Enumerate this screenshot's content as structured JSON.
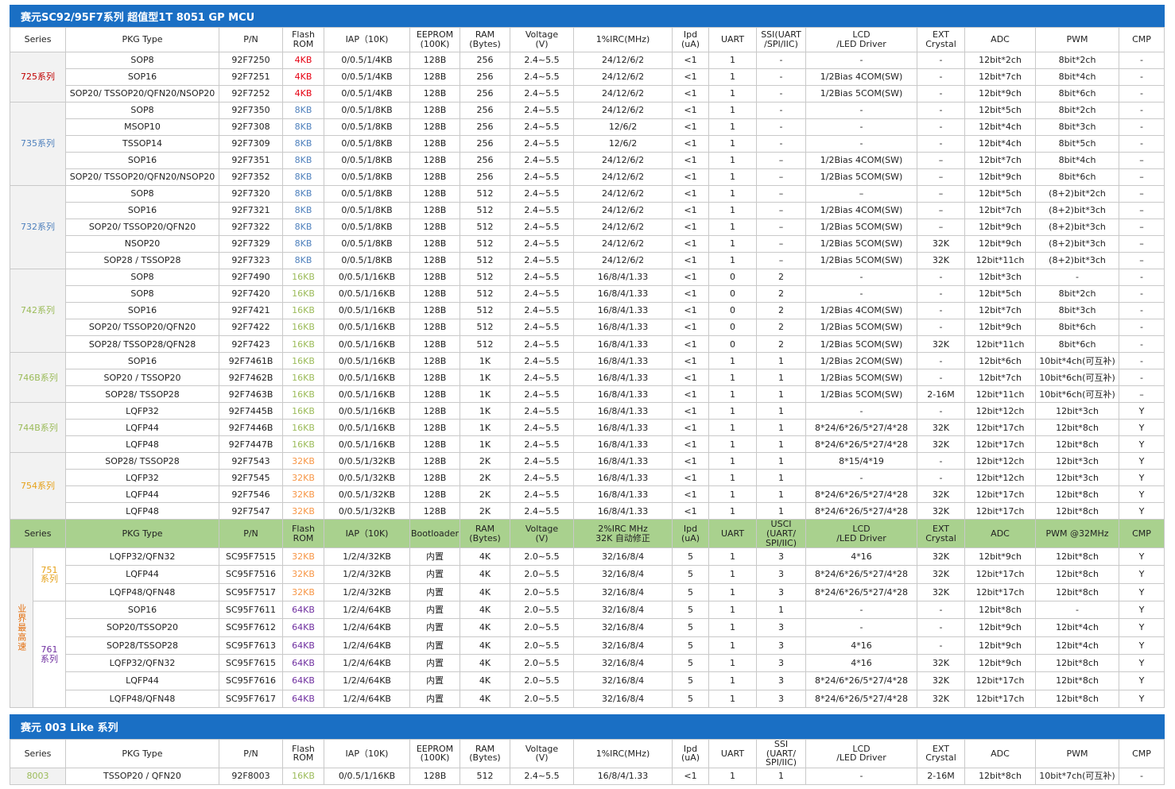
{
  "banner1": "赛元SC92/95F7系列 超值型1T 8051 GP MCU",
  "banner2": "赛元 003 Like 系列",
  "h1": [
    "Series",
    "PKG Type",
    "P/N",
    "Flash\nROM",
    "IAP（10K)",
    "EEPROM\n(100K)",
    "RAM\n(Bytes)",
    "Voltage\n(V)",
    "1%IRC(MHz)",
    "Ipd\n(uA)",
    "UART",
    "SSI(UART\n/SPI/IIC)",
    "LCD\n/LED Driver",
    "EXT\nCrystal",
    "ADC",
    "PWM",
    "CMP"
  ],
  "h2": [
    "Series",
    "PKG Type",
    "P/N",
    "Flash\nROM",
    "IAP（10K)",
    "Bootloader",
    "RAM\n(Bytes)",
    "Voltage\n(V)",
    "2%IRC MHz\n32K 自动修正",
    "Ipd\n(uA)",
    "UART",
    "USCI\n(UART/\nSPI/IIC)",
    "LCD\n/LED Driver",
    "EXT\nCrystal",
    "ADC",
    "PWM @32MHz",
    "CMP"
  ],
  "h3": [
    "Series",
    "PKG Type",
    "P/N",
    "Flash\nROM",
    "IAP（10K)",
    "EEPROM\n(100K)",
    "RAM\n(Bytes)",
    "Voltage\n(V)",
    "1%IRC(MHz)",
    "Ipd\n(uA)",
    "UART",
    "SSI\n(UART/\nSPI/IIC)",
    "LCD\n/LED Driver",
    "EXT\nCrystal",
    "ADC",
    "PWM",
    "CMP"
  ],
  "colors": {
    "banner": "#1a6fc4",
    "green_header": "#a9d18e",
    "red": "#e60012",
    "blue": "#4f81bd",
    "green": "#9bbb59",
    "orange": "#f79646",
    "purple": "#7030a0"
  },
  "groups1": [
    {
      "series": "725系列",
      "color": "sred",
      "rows": [
        [
          "SOP8",
          "92F7250",
          "4KB",
          "0/0.5/1/4KB",
          "128B",
          "256",
          "2.4~5.5",
          "24/12/6/2",
          "<1",
          "1",
          "-",
          "-",
          "-",
          "12bit*2ch",
          "8bit*2ch",
          "-"
        ],
        [
          "SOP16",
          "92F7251",
          "4KB",
          "0/0.5/1/4KB",
          "128B",
          "256",
          "2.4~5.5",
          "24/12/6/2",
          "<1",
          "1",
          "-",
          "1/2Bias 4COM(SW)",
          "-",
          "12bit*7ch",
          "8bit*4ch",
          "-"
        ],
        [
          "SOP20/ TSSOP20/QFN20/NSOP20",
          "92F7252",
          "4KB",
          "0/0.5/1/4KB",
          "128B",
          "256",
          "2.4~5.5",
          "24/12/6/2",
          "<1",
          "1",
          "-",
          "1/2Bias 5COM(SW)",
          "-",
          "12bit*9ch",
          "8bit*6ch",
          "-"
        ]
      ]
    },
    {
      "series": "735系列",
      "color": "sblue",
      "rows": [
        [
          "SOP8",
          "92F7350",
          "8KB",
          "0/0.5/1/8KB",
          "128B",
          "256",
          "2.4~5.5",
          "24/12/6/2",
          "<1",
          "1",
          "-",
          "-",
          "-",
          "12bit*5ch",
          "8bit*2ch",
          "-"
        ],
        [
          "MSOP10",
          "92F7308",
          "8KB",
          "0/0.5/1/8KB",
          "128B",
          "256",
          "2.4~5.5",
          "12/6/2",
          "<1",
          "1",
          "-",
          "-",
          "-",
          "12bit*4ch",
          "8bit*3ch",
          "-"
        ],
        [
          "TSSOP14",
          "92F7309",
          "8KB",
          "0/0.5/1/8KB",
          "128B",
          "256",
          "2.4~5.5",
          "12/6/2",
          "<1",
          "1",
          "-",
          "-",
          "-",
          "12bit*4ch",
          "8bit*5ch",
          "-"
        ],
        [
          "SOP16",
          "92F7351",
          "8KB",
          "0/0.5/1/8KB",
          "128B",
          "256",
          "2.4~5.5",
          "24/12/6/2",
          "<1",
          "1",
          "–",
          "1/2Bias 4COM(SW)",
          "–",
          "12bit*7ch",
          "8bit*4ch",
          "–"
        ],
        [
          "SOP20/ TSSOP20/QFN20/NSOP20",
          "92F7352",
          "8KB",
          "0/0.5/1/8KB",
          "128B",
          "256",
          "2.4~5.5",
          "24/12/6/2",
          "<1",
          "1",
          "–",
          "1/2Bias 5COM(SW)",
          "–",
          "12bit*9ch",
          "8bit*6ch",
          "–"
        ]
      ]
    },
    {
      "series": "732系列",
      "color": "sblue",
      "rows": [
        [
          "SOP8",
          "92F7320",
          "8KB",
          "0/0.5/1/8KB",
          "128B",
          "512",
          "2.4~5.5",
          "24/12/6/2",
          "<1",
          "1",
          "–",
          "–",
          "–",
          "12bit*5ch",
          "(8+2)bit*2ch",
          "–"
        ],
        [
          "SOP16",
          "92F7321",
          "8KB",
          "0/0.5/1/8KB",
          "128B",
          "512",
          "2.4~5.5",
          "24/12/6/2",
          "<1",
          "1",
          "–",
          "1/2Bias 4COM(SW)",
          "–",
          "12bit*7ch",
          "(8+2)bit*3ch",
          "–"
        ],
        [
          "SOP20/ TSSOP20/QFN20",
          "92F7322",
          "8KB",
          "0/0.5/1/8KB",
          "128B",
          "512",
          "2.4~5.5",
          "24/12/6/2",
          "<1",
          "1",
          "–",
          "1/2Bias 5COM(SW)",
          "–",
          "12bit*9ch",
          "(8+2)bit*3ch",
          "–"
        ],
        [
          "NSOP20",
          "92F7329",
          "8KB",
          "0/0.5/1/8KB",
          "128B",
          "512",
          "2.4~5.5",
          "24/12/6/2",
          "<1",
          "1",
          "–",
          "1/2Bias 5COM(SW)",
          "32K",
          "12bit*9ch",
          "(8+2)bit*3ch",
          "–"
        ],
        [
          "SOP28 / TSSOP28",
          "92F7323",
          "8KB",
          "0/0.5/1/8KB",
          "128B",
          "512",
          "2.4~5.5",
          "24/12/6/2",
          "<1",
          "1",
          "–",
          "1/2Bias 5COM(SW)",
          "32K",
          "12bit*11ch",
          "(8+2)bit*3ch",
          "–"
        ]
      ]
    },
    {
      "series": "742系列",
      "color": "solive",
      "rows": [
        [
          "SOP8",
          "92F7490",
          "16KB",
          "0/0.5/1/16KB",
          "128B",
          "512",
          "2.4~5.5",
          "16/8/4/1.33",
          "<1",
          "0",
          "2",
          "-",
          "-",
          "12bit*3ch",
          "-",
          "-"
        ],
        [
          "SOP8",
          "92F7420",
          "16KB",
          "0/0.5/1/16KB",
          "128B",
          "512",
          "2.4~5.5",
          "16/8/4/1.33",
          "<1",
          "0",
          "2",
          "-",
          "-",
          "12bit*5ch",
          "8bit*2ch",
          "-"
        ],
        [
          "SOP16",
          "92F7421",
          "16KB",
          "0/0.5/1/16KB",
          "128B",
          "512",
          "2.4~5.5",
          "16/8/4/1.33",
          "<1",
          "0",
          "2",
          "1/2Bias 4COM(SW)",
          "-",
          "12bit*7ch",
          "8bit*3ch",
          "-"
        ],
        [
          "SOP20/ TSSOP20/QFN20",
          "92F7422",
          "16KB",
          "0/0.5/1/16KB",
          "128B",
          "512",
          "2.4~5.5",
          "16/8/4/1.33",
          "<1",
          "0",
          "2",
          "1/2Bias 5COM(SW)",
          "-",
          "12bit*9ch",
          "8bit*6ch",
          "-"
        ],
        [
          "SOP28/ TSSOP28/QFN28",
          "92F7423",
          "16KB",
          "0/0.5/1/16KB",
          "128B",
          "512",
          "2.4~5.5",
          "16/8/4/1.33",
          "<1",
          "0",
          "2",
          "1/2Bias 5COM(SW)",
          "32K",
          "12bit*11ch",
          "8bit*6ch",
          "-"
        ]
      ]
    },
    {
      "series": "746B系列",
      "color": "solive",
      "rows": [
        [
          "SOP16",
          "92F7461B",
          "16KB",
          "0/0.5/1/16KB",
          "128B",
          "1K",
          "2.4~5.5",
          "16/8/4/1.33",
          "<1",
          "1",
          "1",
          "1/2Bias 2COM(SW)",
          "-",
          "12bit*6ch",
          "10bit*4ch(可互补)",
          "-"
        ],
        [
          "SOP20 / TSSOP20",
          "92F7462B",
          "16KB",
          "0/0.5/1/16KB",
          "128B",
          "1K",
          "2.4~5.5",
          "16/8/4/1.33",
          "<1",
          "1",
          "1",
          "1/2Bias 5COM(SW)",
          "-",
          "12bit*7ch",
          "10bit*6ch(可互补)",
          "-"
        ],
        [
          "SOP28/ TSSOP28",
          "92F7463B",
          "16KB",
          "0/0.5/1/16KB",
          "128B",
          "1K",
          "2.4~5.5",
          "16/8/4/1.33",
          "<1",
          "1",
          "1",
          "1/2Bias 5COM(SW)",
          "2-16M",
          "12bit*11ch",
          "10bit*6ch(可互补)",
          "–"
        ]
      ]
    },
    {
      "series": "744B系列",
      "color": "solive",
      "rows": [
        [
          "LQFP32",
          "92F7445B",
          "16KB",
          "0/0.5/1/16KB",
          "128B",
          "1K",
          "2.4~5.5",
          "16/8/4/1.33",
          "<1",
          "1",
          "1",
          "-",
          "-",
          "12bit*12ch",
          "12bit*3ch",
          "Y"
        ],
        [
          "LQFP44",
          "92F7446B",
          "16KB",
          "0/0.5/1/16KB",
          "128B",
          "1K",
          "2.4~5.5",
          "16/8/4/1.33",
          "<1",
          "1",
          "1",
          "8*24/6*26/5*27/4*28",
          "32K",
          "12bit*17ch",
          "12bit*8ch",
          "Y"
        ],
        [
          "LQFP48",
          "92F7447B",
          "16KB",
          "0/0.5/1/16KB",
          "128B",
          "1K",
          "2.4~5.5",
          "16/8/4/1.33",
          "<1",
          "1",
          "1",
          "8*24/6*26/5*27/4*28",
          "32K",
          "12bit*17ch",
          "12bit*8ch",
          "Y"
        ]
      ]
    },
    {
      "series": "754系列",
      "color": "sorange",
      "rows": [
        [
          "SOP28/ TSSOP28",
          "92F7543",
          "32KB",
          "0/0.5/1/32KB",
          "128B",
          "2K",
          "2.4~5.5",
          "16/8/4/1.33",
          "<1",
          "1",
          "1",
          "8*15/4*19",
          "-",
          "12bit*12ch",
          "12bit*3ch",
          "Y"
        ],
        [
          "LQFP32",
          "92F7545",
          "32KB",
          "0/0.5/1/32KB",
          "128B",
          "2K",
          "2.4~5.5",
          "16/8/4/1.33",
          "<1",
          "1",
          "1",
          "-",
          "-",
          "12bit*12ch",
          "12bit*3ch",
          "Y"
        ],
        [
          "LQFP44",
          "92F7546",
          "32KB",
          "0/0.5/1/32KB",
          "128B",
          "2K",
          "2.4~5.5",
          "16/8/4/1.33",
          "<1",
          "1",
          "1",
          "8*24/6*26/5*27/4*28",
          "32K",
          "12bit*17ch",
          "12bit*8ch",
          "Y"
        ],
        [
          "LQFP48",
          "92F7547",
          "32KB",
          "0/0.5/1/32KB",
          "128B",
          "2K",
          "2.4~5.5",
          "16/8/4/1.33",
          "<1",
          "1",
          "1",
          "8*24/6*26/5*27/4*28",
          "32K",
          "12bit*17ch",
          "12bit*8ch",
          "Y"
        ]
      ]
    }
  ],
  "highlight_label": "业界最高速",
  "groups2": [
    {
      "series": "751\n系列",
      "color": "sorange",
      "rows": [
        [
          "LQFP32/QFN32",
          "SC95F7515",
          "32KB",
          "1/2/4/32KB",
          "内置",
          "4K",
          "2.0~5.5",
          "32/16/8/4",
          "5",
          "1",
          "3",
          "4*16",
          "32K",
          "12bit*9ch",
          "12bit*8ch",
          "Y"
        ],
        [
          "LQFP44",
          "SC95F7516",
          "32KB",
          "1/2/4/32KB",
          "内置",
          "4K",
          "2.0~5.5",
          "32/16/8/4",
          "5",
          "1",
          "3",
          "8*24/6*26/5*27/4*28",
          "32K",
          "12bit*17ch",
          "12bit*8ch",
          "Y"
        ],
        [
          "LQFP48/QFN48",
          "SC95F7517",
          "32KB",
          "1/2/4/32KB",
          "内置",
          "4K",
          "2.0~5.5",
          "32/16/8/4",
          "5",
          "1",
          "3",
          "8*24/6*26/5*27/4*28",
          "32K",
          "12bit*17ch",
          "12bit*8ch",
          "Y"
        ]
      ]
    },
    {
      "series": "761\n系列",
      "color": "spurple",
      "rows": [
        [
          "SOP16",
          "SC95F7611",
          "64KB",
          "1/2/4/64KB",
          "内置",
          "4K",
          "2.0~5.5",
          "32/16/8/4",
          "5",
          "1",
          "1",
          "-",
          "-",
          "12bit*8ch",
          "-",
          "Y"
        ],
        [
          "SOP20/TSSOP20",
          "SC95F7612",
          "64KB",
          "1/2/4/64KB",
          "内置",
          "4K",
          "2.0~5.5",
          "32/16/8/4",
          "5",
          "1",
          "3",
          "-",
          "-",
          "12bit*9ch",
          "12bit*4ch",
          "Y"
        ],
        [
          "SOP28/TSSOP28",
          "SC95F7613",
          "64KB",
          "1/2/4/64KB",
          "内置",
          "4K",
          "2.0~5.5",
          "32/16/8/4",
          "5",
          "1",
          "3",
          "4*16",
          "-",
          "12bit*9ch",
          "12bit*4ch",
          "Y"
        ],
        [
          "LQFP32/QFN32",
          "SC95F7615",
          "64KB",
          "1/2/4/64KB",
          "内置",
          "4K",
          "2.0~5.5",
          "32/16/8/4",
          "5",
          "1",
          "3",
          "4*16",
          "32K",
          "12bit*9ch",
          "12bit*8ch",
          "Y"
        ],
        [
          "LQFP44",
          "SC95F7616",
          "64KB",
          "1/2/4/64KB",
          "内置",
          "4K",
          "2.0~5.5",
          "32/16/8/4",
          "5",
          "1",
          "3",
          "8*24/6*26/5*27/4*28",
          "32K",
          "12bit*17ch",
          "12bit*8ch",
          "Y"
        ],
        [
          "LQFP48/QFN48",
          "SC95F7617",
          "64KB",
          "1/2/4/64KB",
          "内置",
          "4K",
          "2.0~5.5",
          "32/16/8/4",
          "5",
          "1",
          "3",
          "8*24/6*26/5*27/4*28",
          "32K",
          "12bit*17ch",
          "12bit*8ch",
          "Y"
        ]
      ]
    }
  ],
  "groups3": [
    {
      "series": "8003",
      "color": "solive",
      "rows": [
        [
          "TSSOP20 / QFN20",
          "92F8003",
          "16KB",
          "0/0.5/1/16KB",
          "128B",
          "512",
          "2.4~5.5",
          "16/8/4/1.33",
          "<1",
          "1",
          "1",
          "-",
          "2-16M",
          "12bit*8ch",
          "10bit*7ch(可互补)",
          "-"
        ]
      ]
    }
  ]
}
